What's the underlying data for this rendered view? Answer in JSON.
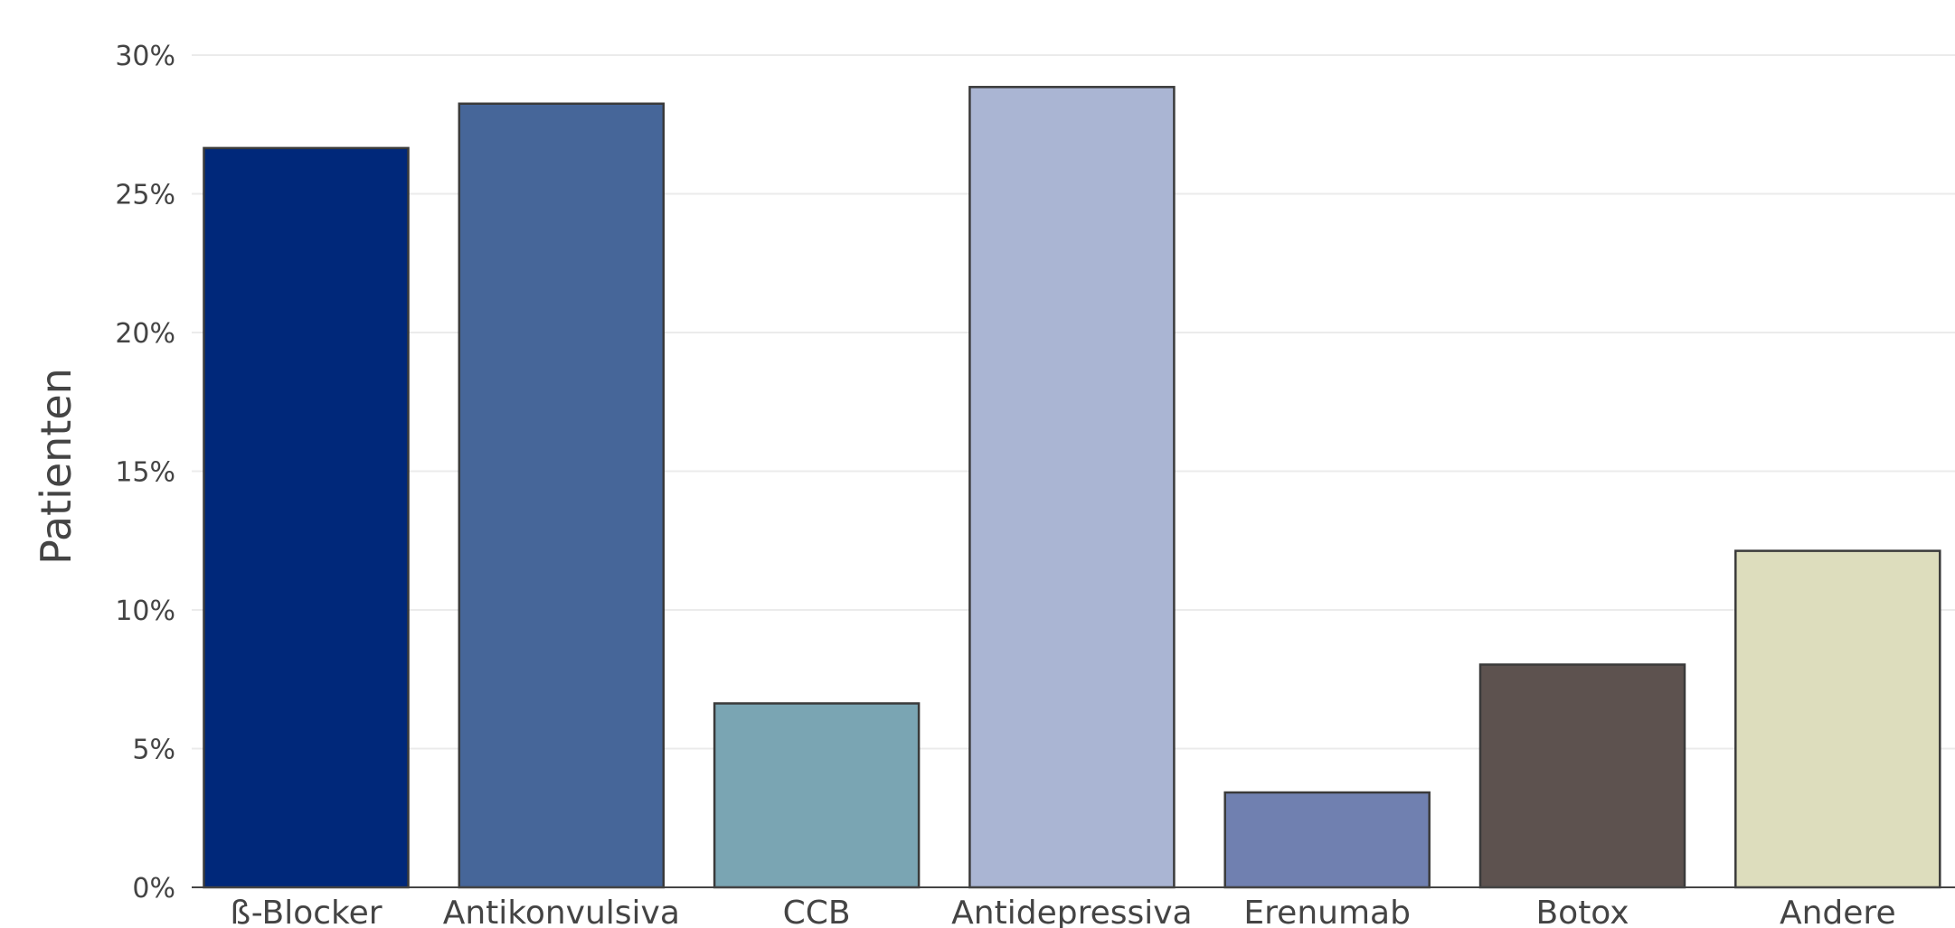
{
  "chart_data": {
    "type": "bar",
    "title": "",
    "xlabel": "",
    "ylabel": "Patienten",
    "ylim": [
      0,
      0.3
    ],
    "y_tick_format": "percent",
    "y_ticks": [
      0,
      0.05,
      0.1,
      0.15,
      0.2,
      0.25,
      0.3
    ],
    "y_tick_labels": [
      "0%",
      "5%",
      "10%",
      "15%",
      "20%",
      "25%",
      "30%"
    ],
    "grid": true,
    "categories": [
      "ß-Blocker",
      "Antikonvulsiva",
      "CCB",
      "Antidepressiva",
      "Erenumab",
      "Botox",
      "Andere"
    ],
    "values": [
      0.2665,
      0.2825,
      0.0663,
      0.2885,
      0.0342,
      0.0803,
      0.1213
    ],
    "colors": [
      "#00287a",
      "#466699",
      "#7aa5b3",
      "#aab5d3",
      "#7080b0",
      "#5d524f",
      "#ddddbd"
    ]
  }
}
